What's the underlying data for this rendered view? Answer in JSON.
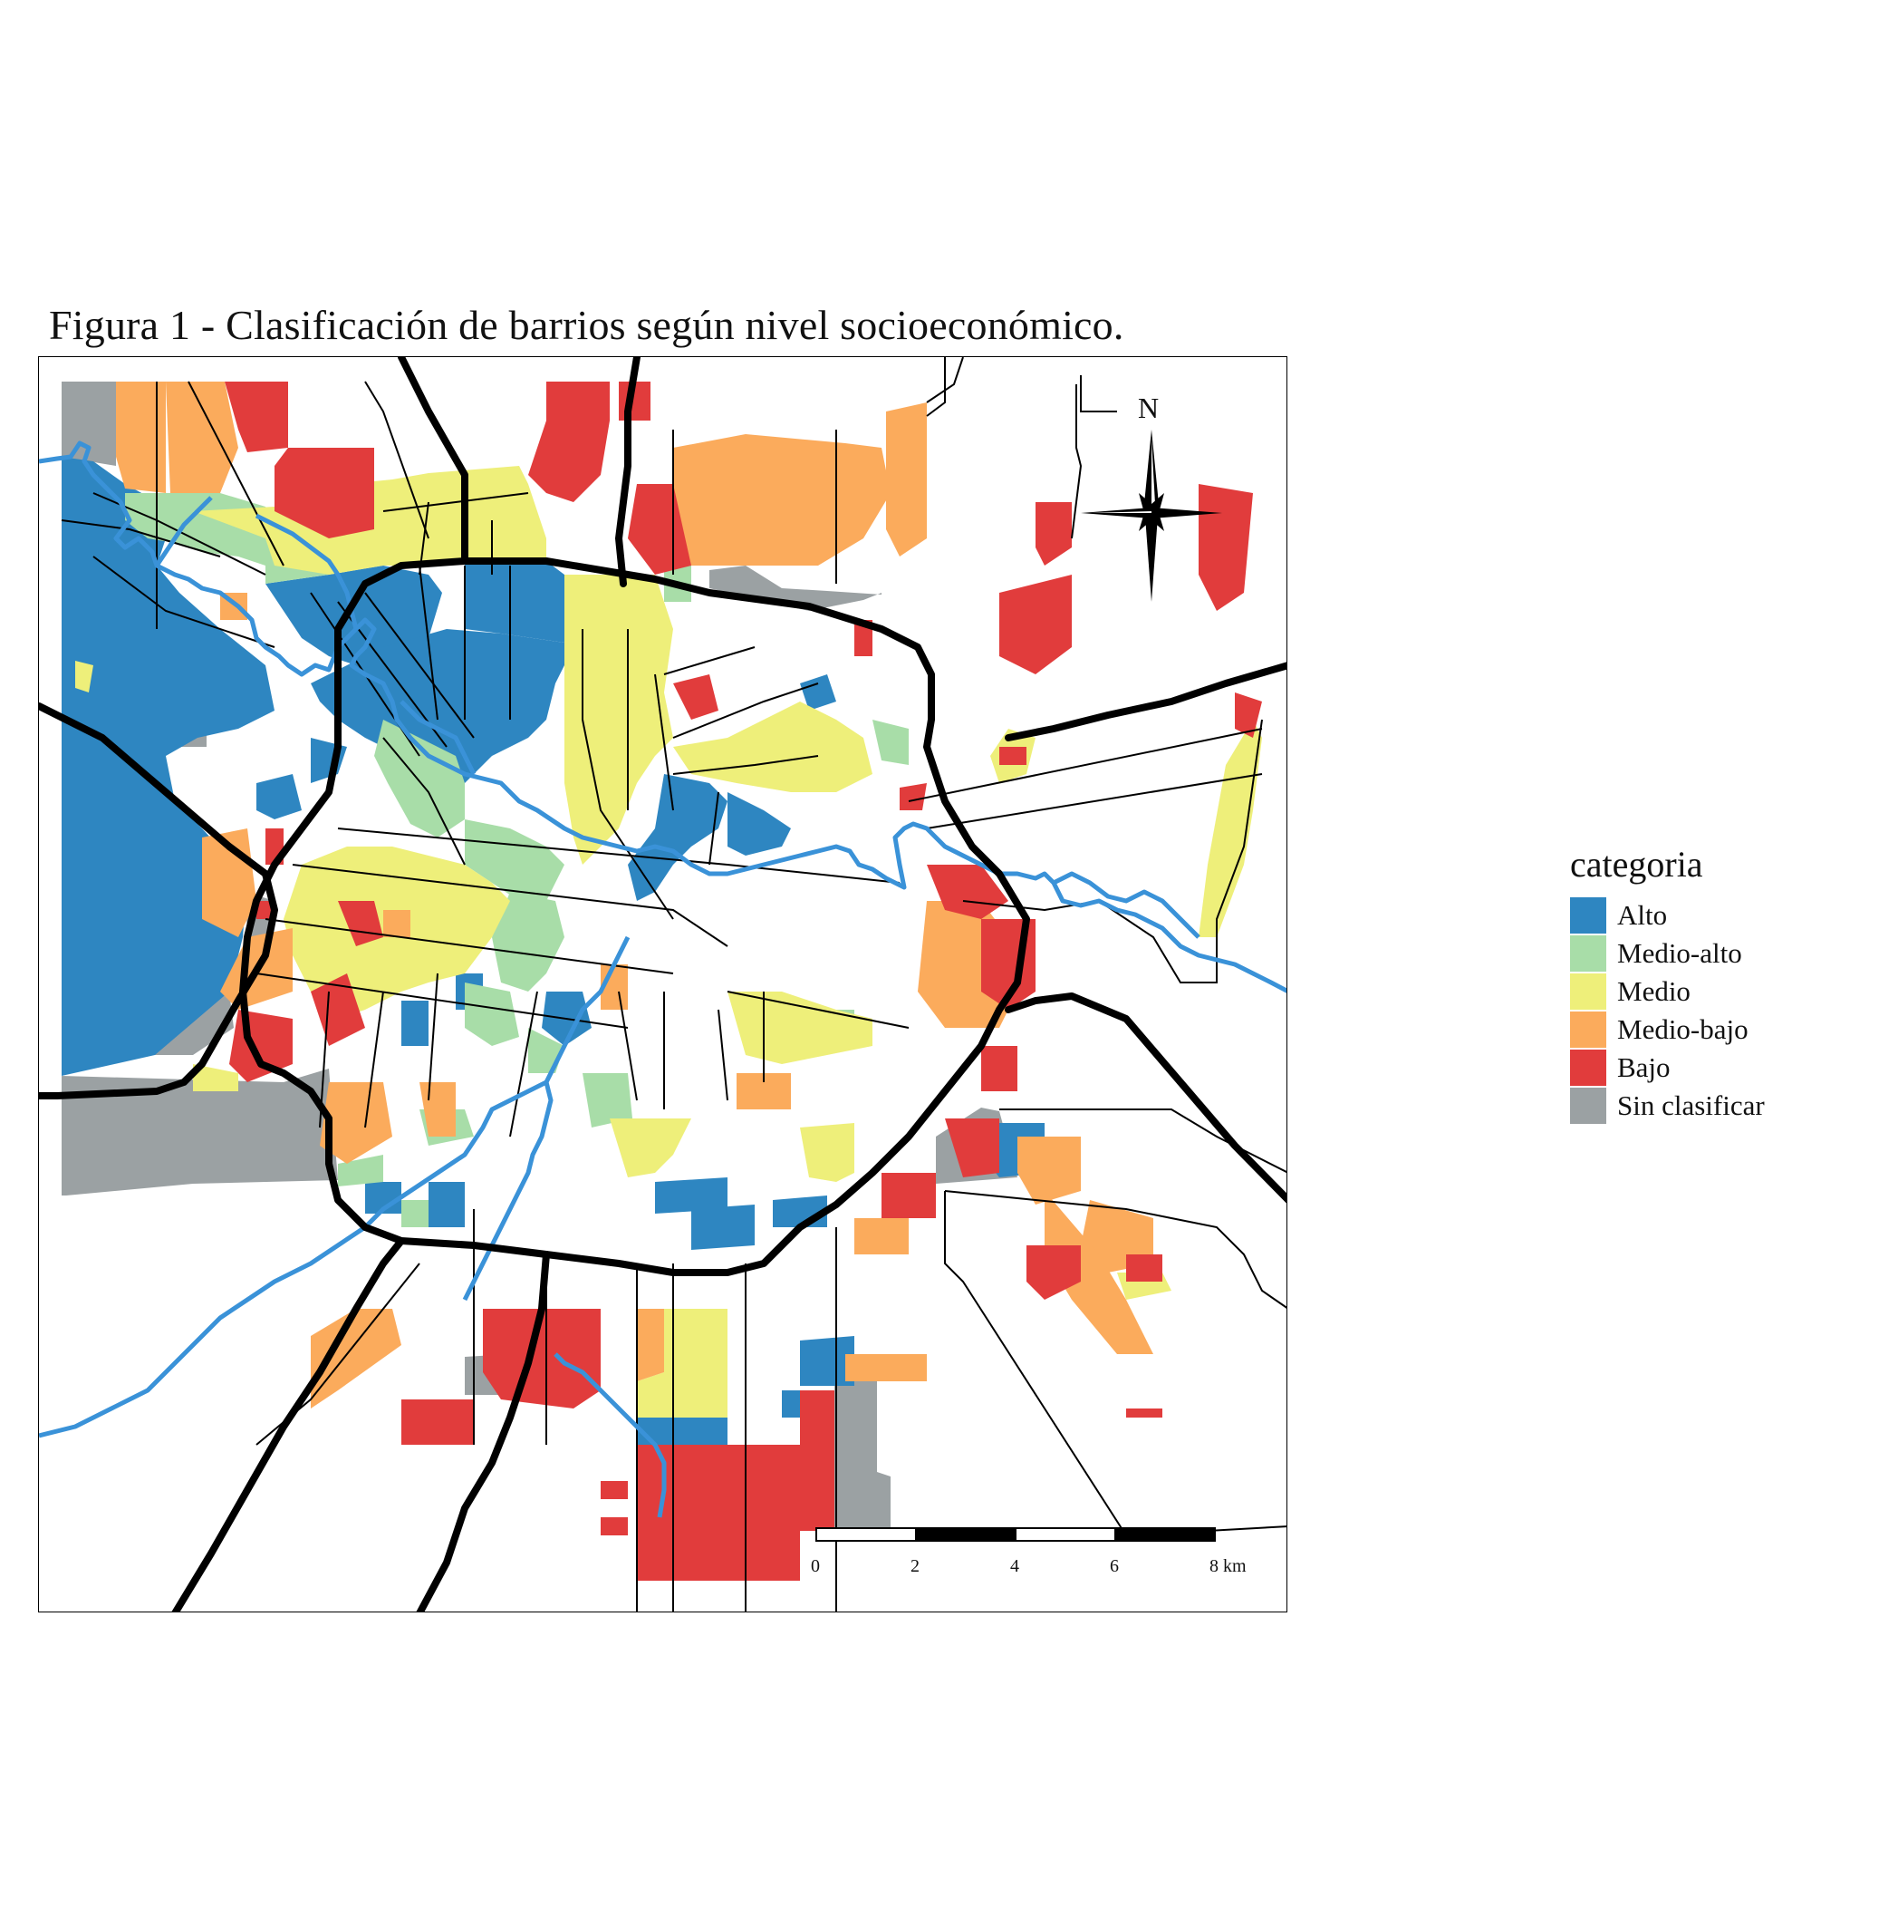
{
  "title": "Figura 1 - Clasificación de barrios según nivel socioeconómico.",
  "legend": {
    "title": "categoria",
    "items": [
      {
        "label": "Alto",
        "color": "#2e86c1"
      },
      {
        "label": "Medio-alto",
        "color": "#a8dda8"
      },
      {
        "label": "Medio",
        "color": "#eeef7a"
      },
      {
        "label": "Medio-bajo",
        "color": "#fbab5c"
      },
      {
        "label": "Bajo",
        "color": "#e13c3c"
      },
      {
        "label": "Sin clasificar",
        "color": "#9ba1a3"
      }
    ]
  },
  "north_arrow": {
    "label": "N"
  },
  "scale_bar": {
    "labels": [
      "0",
      "2",
      "4",
      "6",
      "8 km"
    ]
  },
  "colors": {
    "river": "#3a92d8",
    "highway": "#000000",
    "road": "#000000"
  }
}
